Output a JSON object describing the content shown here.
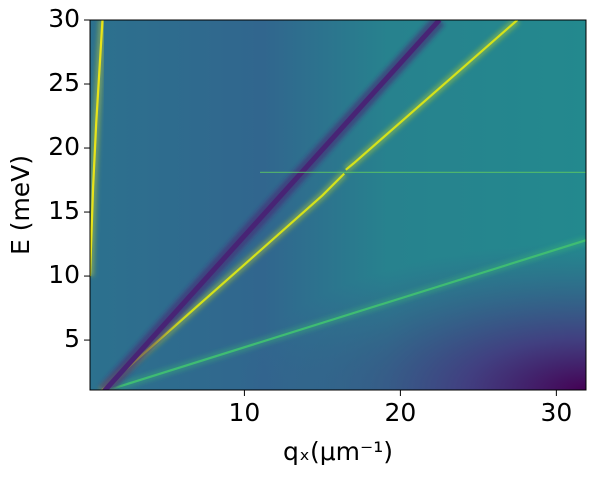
{
  "chart_data": {
    "type": "heatmap",
    "xlabel": "qₓ(μm⁻¹)",
    "ylabel": "E (meV)",
    "xlim": [
      0.1,
      31.9
    ],
    "ylim": [
      1.1,
      30
    ],
    "xticks": [
      10,
      20,
      30
    ],
    "yticks": [
      5,
      10,
      15,
      20,
      25,
      30
    ],
    "series": [
      {
        "color": "#e8e419",
        "x": [
          0.1,
          0.3,
          0.5,
          0.9
        ],
        "values": [
          10,
          17,
          22,
          30
        ]
      },
      {
        "color": "#d5e21a",
        "x": [
          0.8,
          10,
          15,
          16.4
        ],
        "values": [
          1,
          10.9,
          16.3,
          18.0
        ]
      },
      {
        "color": "#d5e21a",
        "x": [
          16.5,
          17,
          27.5
        ],
        "values": [
          18.3,
          18.8,
          30
        ]
      },
      {
        "color": "#3fbc73",
        "x": [
          1,
          31.9
        ],
        "values": [
          1,
          12.8
        ]
      },
      {
        "color": "#482475",
        "x": [
          1,
          22.5
        ],
        "values": [
          1,
          30
        ]
      },
      {
        "color": "#5ec962",
        "x": [
          11,
          31.9
        ],
        "values": [
          18.1,
          18.1
        ]
      }
    ]
  }
}
